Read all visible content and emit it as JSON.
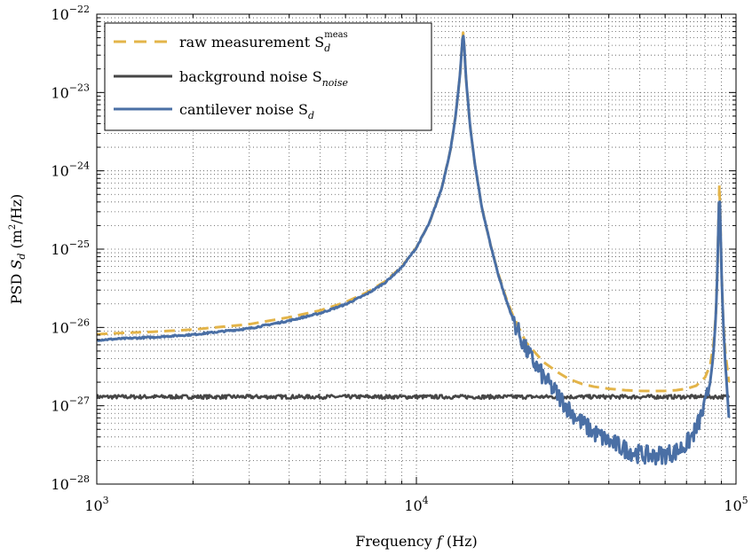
{
  "chart_data": {
    "type": "line",
    "xlabel": "Frequency f (Hz)",
    "ylabel": "PSD S_d (m²/Hz)",
    "x_scale": "log",
    "y_scale": "log",
    "xlim": [
      1000,
      100000
    ],
    "ylim": [
      1e-28,
      1e-22
    ],
    "grid": true,
    "legend_position": "top-left",
    "x_ticks": [
      {
        "value": 1000,
        "base": "10",
        "exp": "3"
      },
      {
        "value": 10000,
        "base": "10",
        "exp": "4"
      },
      {
        "value": 100000,
        "base": "10",
        "exp": "5"
      }
    ],
    "y_ticks": [
      {
        "value": 1e-28,
        "base": "10",
        "exp": "−28"
      },
      {
        "value": 1e-27,
        "base": "10",
        "exp": "−27"
      },
      {
        "value": 1e-26,
        "base": "10",
        "exp": "−26"
      },
      {
        "value": 1e-25,
        "base": "10",
        "exp": "−25"
      },
      {
        "value": 1e-24,
        "base": "10",
        "exp": "−24"
      },
      {
        "value": 1e-23,
        "base": "10",
        "exp": "−23"
      },
      {
        "value": 1e-22,
        "base": "10",
        "exp": "−22"
      }
    ],
    "series": [
      {
        "name": "raw measurement S_d^meas",
        "color": "#e3b449",
        "style": "dashed",
        "x": [
          1000,
          1200,
          1500,
          2000,
          3000,
          4000,
          5000,
          6000,
          7000,
          8000,
          9000,
          10000,
          11000,
          12000,
          12800,
          13300,
          13700,
          13900,
          14000,
          14100,
          14300,
          14700,
          15200,
          16000,
          17000,
          18000,
          19000,
          20000,
          22000,
          25000,
          28000,
          30000,
          33000,
          36000,
          40000,
          45000,
          50000,
          55000,
          60000,
          65000,
          70000,
          75000,
          80000,
          83000,
          85000,
          86500,
          87500,
          88200,
          88700,
          89200,
          90000,
          91000,
          92500,
          95000
        ],
        "y": [
          8.2e-27,
          8.5e-27,
          8.8e-27,
          9.4e-27,
          1.1e-26,
          1.35e-26,
          1.65e-26,
          2.1e-26,
          2.8e-26,
          3.9e-26,
          6e-26,
          1.05e-25,
          2.2e-25,
          6e-25,
          1.9e-24,
          5.5e-24,
          1.7e-23,
          4.2e-23,
          5.8e-23,
          4.2e-23,
          1.5e-23,
          4e-24,
          1.3e-24,
          3.5e-25,
          1.2e-25,
          5e-26,
          2.5e-26,
          1.45e-26,
          6.5e-27,
          3.6e-27,
          2.6e-27,
          2.2e-27,
          1.9e-27,
          1.75e-27,
          1.65e-27,
          1.58e-27,
          1.55e-27,
          1.54e-27,
          1.55e-27,
          1.58e-27,
          1.65e-27,
          1.8e-27,
          2.3e-27,
          3.3e-27,
          6e-27,
          1.5e-26,
          6e-26,
          2.5e-25,
          6.5e-25,
          3e-25,
          6e-26,
          1.5e-26,
          5e-27,
          2e-27
        ]
      },
      {
        "name": "background noise S_noise",
        "color": "#464646",
        "style": "solid",
        "x": [
          1000,
          95000
        ],
        "y": [
          1.3e-27,
          1.3e-27
        ],
        "noise": 0.025
      },
      {
        "name": "cantilever noise S_d",
        "color": "#4a6fa5",
        "style": "solid",
        "x": [
          1000,
          1200,
          1500,
          2000,
          3000,
          4000,
          5000,
          6000,
          7000,
          8000,
          9000,
          10000,
          11000,
          12000,
          12800,
          13300,
          13700,
          13900,
          14000,
          14100,
          14300,
          14700,
          15200,
          16000,
          17000,
          18000,
          19000,
          20000,
          22000,
          25000,
          28000,
          30000,
          33000,
          36000,
          40000,
          45000,
          50000,
          55000,
          60000,
          65000,
          70000,
          75000,
          80000,
          83000,
          85000,
          86500,
          87500,
          88200,
          88700,
          89200,
          90000,
          91000,
          92500,
          95000
        ],
        "y": [
          6.9e-27,
          7.2e-27,
          7.5e-27,
          8.1e-27,
          9.7e-27,
          1.22e-26,
          1.52e-26,
          1.97e-26,
          2.67e-26,
          3.77e-26,
          5.87e-26,
          1.04e-25,
          2.19e-25,
          5.99e-25,
          1.9e-24,
          5.5e-24,
          1.7e-23,
          4.2e-23,
          5.8e-23,
          4.2e-23,
          1.5e-23,
          4e-24,
          1.3e-24,
          3.5e-25,
          1.2e-25,
          4.87e-26,
          2.37e-26,
          1.32e-26,
          5.2e-27,
          2.3e-27,
          1.3e-27,
          9e-28,
          6e-28,
          4.5e-28,
          3.5e-28,
          2.8e-28,
          2.4e-28,
          2.3e-28,
          2.4e-28,
          2.6e-28,
          3.2e-28,
          5e-28,
          1e-27,
          2e-27,
          4.7e-27,
          1.37e-26,
          5.87e-26,
          2.49e-25,
          6.49e-25,
          2.99e-25,
          5.87e-26,
          1.37e-26,
          3.7e-27,
          7e-28
        ],
        "noise": 0.12,
        "noise_from": 20000,
        "noise_to": 82000
      }
    ]
  },
  "legend": {
    "items": [
      {
        "text": "raw measurement S",
        "sub": "d",
        "sup": "meas"
      },
      {
        "text": "background noise S",
        "sub": "noise",
        "sup": ""
      },
      {
        "text": "cantilever noise S",
        "sub": "d",
        "sup": ""
      }
    ]
  },
  "axes_text": {
    "xlabel_pre": "Frequency ",
    "xlabel_var": "f",
    "xlabel_post": " (Hz)",
    "ylabel_pre": "PSD ",
    "ylabel_var": "S",
    "ylabel_sub": "d",
    "ylabel_post1": " (m",
    "ylabel_sup": "2",
    "ylabel_post2": "/Hz)"
  }
}
